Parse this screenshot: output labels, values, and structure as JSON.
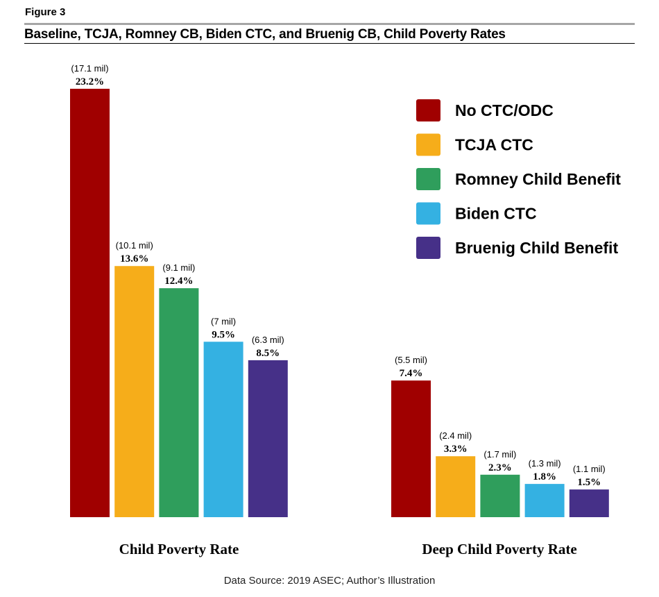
{
  "figure_label": "Figure 3",
  "title": "Baseline, TCJA, Romney CB, Biden CTC, and Bruenig CB, Child Poverty Rates",
  "source": "Data Source: 2019 ASEC; Author’s Illustration",
  "chart_data": {
    "type": "bar",
    "categories": [
      "Child Poverty Rate",
      "Deep Child Poverty Rate"
    ],
    "unit": "%",
    "ylim": [
      0,
      25
    ],
    "grid": false,
    "legend_position": "top-right",
    "series": [
      {
        "name": "No CTC/ODC",
        "color": "#a00000",
        "values": [
          23.2,
          7.4
        ],
        "value_labels": [
          "23.2%",
          "7.4%"
        ],
        "counts": [
          "(17.1 mil)",
          "(5.5 mil)"
        ]
      },
      {
        "name": "TCJA CTC",
        "color": "#f6ad1a",
        "values": [
          13.6,
          3.3
        ],
        "value_labels": [
          "13.6%",
          "3.3%"
        ],
        "counts": [
          "(10.1 mil)",
          "(2.4 mil)"
        ]
      },
      {
        "name": "Romney Child Benefit",
        "color": "#2f9e5c",
        "values": [
          12.4,
          2.3
        ],
        "value_labels": [
          "12.4%",
          "2.3%"
        ],
        "counts": [
          "(9.1 mil)",
          "(1.7 mil)"
        ]
      },
      {
        "name": "Biden CTC",
        "color": "#34b1e2",
        "values": [
          9.5,
          1.8
        ],
        "value_labels": [
          "9.5%",
          "1.8%"
        ],
        "counts": [
          "(7 mil)",
          "(1.3 mil)"
        ]
      },
      {
        "name": "Bruenig Child Benefit",
        "color": "#463088",
        "values": [
          8.5,
          1.5
        ],
        "value_labels": [
          "8.5%",
          "1.5%"
        ],
        "counts": [
          "(6.3 mil)",
          "(1.1 mil)"
        ]
      }
    ]
  }
}
